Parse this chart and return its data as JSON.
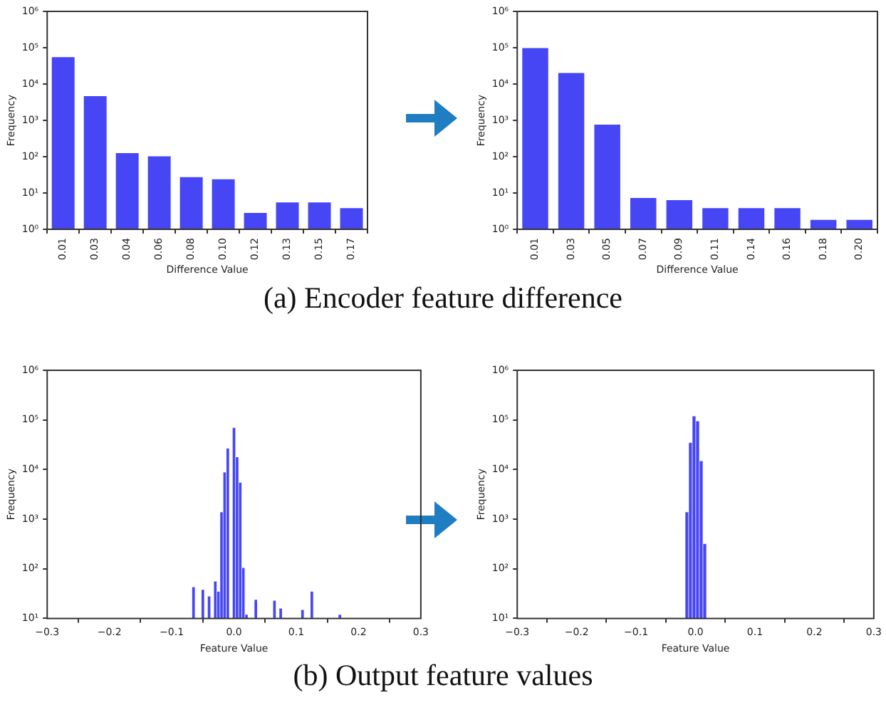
{
  "chart_data": [
    {
      "type": "bar",
      "xlabel": "Difference Value",
      "ylabel": "Frequency",
      "categories": [
        "0.01",
        "0.03",
        "0.04",
        "0.06",
        "0.08",
        "0.10",
        "0.12",
        "0.13",
        "0.15",
        "0.17"
      ],
      "values": [
        60000,
        5100,
        138,
        112,
        30,
        26,
        3.1,
        6,
        6,
        4.2
      ],
      "color": "#4646f4",
      "log": true,
      "ylim": [
        1,
        1000000
      ],
      "yticks": [
        {
          "value": 1,
          "label": "10⁰"
        },
        {
          "value": 10,
          "label": "10¹"
        },
        {
          "value": 100,
          "label": "10²"
        },
        {
          "value": 1000,
          "label": "10³"
        },
        {
          "value": 10000,
          "label": "10⁴"
        },
        {
          "value": 100000,
          "label": "10⁵"
        },
        {
          "value": 1000000,
          "label": "10⁶"
        }
      ],
      "annotations": [
        "(a) Encoder feature difference"
      ]
    },
    {
      "type": "bar",
      "xlabel": "Difference Value",
      "ylabel": "Frequency",
      "categories": [
        "0.01",
        "0.03",
        "0.05",
        "0.07",
        "0.09",
        "0.11",
        "0.14",
        "0.16",
        "0.18",
        "0.20"
      ],
      "values": [
        107000,
        22000,
        840,
        8,
        7,
        4.2,
        4.2,
        4.2,
        2,
        2
      ],
      "color": "#4646f4",
      "log": true,
      "ylim": [
        1,
        1000000
      ],
      "yticks": [
        {
          "value": 1,
          "label": "10⁰"
        },
        {
          "value": 10,
          "label": "10¹"
        },
        {
          "value": 100,
          "label": "10²"
        },
        {
          "value": 1000,
          "label": "10³"
        },
        {
          "value": 10000,
          "label": "10⁴"
        },
        {
          "value": 100000,
          "label": "10⁵"
        },
        {
          "value": 1000000,
          "label": "10⁶"
        }
      ]
    },
    {
      "type": "histogram",
      "xlabel": "Feature Value",
      "ylabel": "Frequency",
      "bins": [
        -0.0675,
        -0.0625,
        -0.0575,
        -0.0525,
        -0.0475,
        -0.0425,
        -0.0375,
        -0.0325,
        -0.0275,
        -0.0225,
        -0.0175,
        -0.0125,
        -0.0075,
        -0.0025,
        0.0025,
        0.0075,
        0.0125,
        0.0175,
        0.0225,
        0.0275,
        0.0325,
        0.0375,
        0.0425,
        0.0475,
        0.0525,
        0.0575,
        0.0625,
        0.0675,
        0.0725,
        0.0775,
        0.0825,
        0.0875,
        0.0925,
        0.0975,
        0.1025,
        0.1075,
        0.1125,
        0.1175,
        0.1225,
        0.1275,
        0.1325,
        0.1375,
        0.1425,
        0.1475,
        0.1525,
        0.1575,
        0.1625,
        0.1675,
        0.1725
      ],
      "values": [
        43,
        null,
        null,
        38,
        null,
        28,
        null,
        56,
        35,
        1400,
        8900,
        27000,
        null,
        70000,
        18000,
        5500,
        105,
        12,
        null,
        null,
        24,
        null,
        null,
        null,
        null,
        null,
        23,
        null,
        16,
        null,
        null,
        null,
        null,
        null,
        null,
        15,
        null,
        null,
        35,
        null,
        null,
        null,
        null,
        null,
        null,
        null,
        null,
        12
      ],
      "color": "#4646f4",
      "log": true,
      "xlim": [
        -0.3,
        0.3
      ],
      "xticks": [
        {
          "value": -0.3,
          "label": "−0.3"
        },
        {
          "value": -0.2,
          "label": "−0.2"
        },
        {
          "value": -0.1,
          "label": "−0.1"
        },
        {
          "value": 0,
          "label": "0.0"
        },
        {
          "value": 0.1,
          "label": "0.1"
        },
        {
          "value": 0.2,
          "label": "0.2"
        },
        {
          "value": 0.3,
          "label": "0.3"
        }
      ],
      "ylim": [
        10,
        1000000
      ],
      "yticks": [
        {
          "value": 10,
          "label": "10¹"
        },
        {
          "value": 100,
          "label": "10²"
        },
        {
          "value": 1000,
          "label": "10³"
        },
        {
          "value": 10000,
          "label": "10⁴"
        },
        {
          "value": 100000,
          "label": "10⁵"
        },
        {
          "value": 1000000,
          "label": "10⁶"
        }
      ],
      "annotations": [
        "(b) Output feature values"
      ]
    },
    {
      "type": "histogram",
      "xlabel": "Feature Value",
      "ylabel": "Frequency",
      "bins": [
        -0.0175,
        -0.0115,
        -0.0055,
        0.0005,
        0.0065,
        0.0125,
        0.0185
      ],
      "values": [
        1400,
        35000,
        120000,
        95000,
        15000,
        320
      ],
      "color": "#4646f4",
      "log": true,
      "xlim": [
        -0.3,
        0.3
      ],
      "xticks": [
        {
          "value": -0.3,
          "label": "−0.3"
        },
        {
          "value": -0.2,
          "label": "−0.2"
        },
        {
          "value": -0.1,
          "label": "−0.1"
        },
        {
          "value": 0,
          "label": "0.0"
        },
        {
          "value": 0.1,
          "label": "0.1"
        },
        {
          "value": 0.2,
          "label": "0.2"
        },
        {
          "value": 0.3,
          "label": "0.3"
        }
      ],
      "ylim": [
        10,
        1000000
      ],
      "yticks": [
        {
          "value": 10,
          "label": "10¹"
        },
        {
          "value": 100,
          "label": "10²"
        },
        {
          "value": 1000,
          "label": "10³"
        },
        {
          "value": 10000,
          "label": "10⁴"
        },
        {
          "value": 100000,
          "label": "10⁵"
        },
        {
          "value": 1000000,
          "label": "10⁶"
        }
      ]
    }
  ]
}
